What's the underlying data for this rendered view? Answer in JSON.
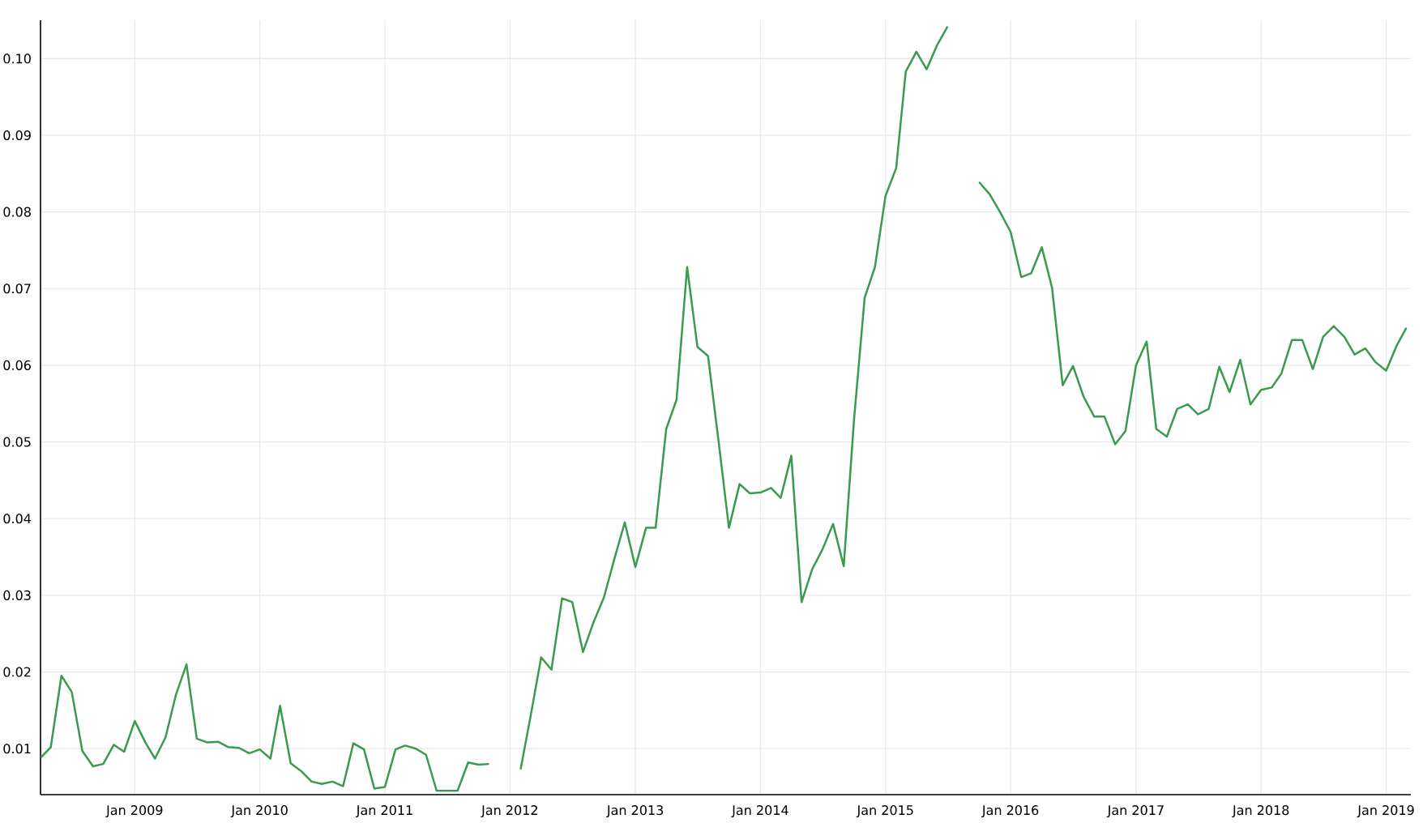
{
  "chart_data": {
    "type": "line",
    "x": [
      "2008-04",
      "2008-05",
      "2008-06",
      "2008-07",
      "2008-08",
      "2008-09",
      "2008-10",
      "2008-11",
      "2008-12",
      "2009-01",
      "2009-02",
      "2009-03",
      "2009-04",
      "2009-05",
      "2009-06",
      "2009-07",
      "2009-08",
      "2009-09",
      "2009-10",
      "2009-11",
      "2009-12",
      "2010-01",
      "2010-02",
      "2010-03",
      "2010-04",
      "2010-05",
      "2010-06",
      "2010-07",
      "2010-08",
      "2010-09",
      "2010-10",
      "2010-11",
      "2010-12",
      "2011-01",
      "2011-02",
      "2011-03",
      "2011-04",
      "2011-05",
      "2011-06",
      "2011-07",
      "2011-08",
      "2011-09",
      "2011-10",
      "2011-11",
      "2011-12",
      "2012-01",
      "2012-02",
      "2012-03",
      "2012-04",
      "2012-05",
      "2012-06",
      "2012-07",
      "2012-08",
      "2012-09",
      "2012-10",
      "2012-11",
      "2012-12",
      "2013-01",
      "2013-02",
      "2013-03",
      "2013-04",
      "2013-05",
      "2013-06",
      "2013-07",
      "2013-08",
      "2013-09",
      "2013-10",
      "2013-11",
      "2013-12",
      "2014-01",
      "2014-02",
      "2014-03",
      "2014-04",
      "2014-05",
      "2014-06",
      "2014-07",
      "2014-08",
      "2014-09",
      "2014-10",
      "2014-11",
      "2014-12",
      "2015-01",
      "2015-02",
      "2015-03",
      "2015-04",
      "2015-05",
      "2015-06",
      "2015-07",
      "2015-08",
      "2015-09",
      "2015-10",
      "2015-11",
      "2015-12",
      "2016-01",
      "2016-02",
      "2016-03",
      "2016-04",
      "2016-05",
      "2016-06",
      "2016-07",
      "2016-08",
      "2016-09",
      "2016-10",
      "2016-11",
      "2016-12",
      "2017-01",
      "2017-02",
      "2017-03",
      "2017-04",
      "2017-05",
      "2017-06",
      "2017-07",
      "2017-08",
      "2017-09",
      "2017-10",
      "2017-11",
      "2017-12",
      "2018-01",
      "2018-02",
      "2018-03",
      "2018-04",
      "2018-05",
      "2018-06",
      "2018-07",
      "2018-08",
      "2018-09",
      "2018-10",
      "2018-11",
      "2018-12",
      "2019-01",
      "2019-02",
      "2019-03"
    ],
    "series": [
      {
        "color": "#3a9a4e",
        "values": [
          0.0088,
          0.0102,
          0.0195,
          0.0174,
          0.0097,
          0.0077,
          0.008,
          0.0105,
          0.0096,
          0.0136,
          0.0108,
          0.0087,
          0.0115,
          0.017,
          0.021,
          0.0113,
          0.0108,
          0.0109,
          0.0102,
          0.0101,
          0.0094,
          0.0099,
          0.0087,
          0.0156,
          0.0081,
          0.0071,
          0.0057,
          0.0054,
          0.0057,
          0.0051,
          0.0107,
          0.0099,
          0.0048,
          0.005,
          0.0099,
          0.0104,
          0.01,
          0.0092,
          0.0045,
          0.0045,
          0.0045,
          0.0082,
          0.0079,
          0.008,
          null,
          null,
          0.0073,
          0.0142,
          0.0219,
          0.0203,
          0.0296,
          0.0291,
          0.0226,
          0.0265,
          0.0297,
          0.0348,
          0.0395,
          0.0337,
          0.0388,
          0.0388,
          0.0517,
          0.0555,
          0.0728,
          0.0624,
          0.0612,
          0.05,
          0.0388,
          0.0445,
          0.0433,
          0.0434,
          0.044,
          0.0427,
          0.0482,
          0.0291,
          0.0334,
          0.036,
          0.0393,
          0.0338,
          0.0529,
          0.0688,
          0.0728,
          0.0821,
          0.0857,
          0.0983,
          0.1009,
          0.0986,
          0.1018,
          0.1042,
          null,
          null,
          0.0839,
          0.0823,
          0.08,
          0.0774,
          0.0715,
          0.072,
          0.0754,
          0.0701,
          0.0574,
          0.0599,
          0.0559,
          0.0533,
          0.0533,
          0.0497,
          0.0514,
          0.06,
          0.0631,
          0.0517,
          0.0507,
          0.0543,
          0.0549,
          0.0536,
          0.0543,
          0.0598,
          0.0565,
          0.0607,
          0.0549,
          0.0568,
          0.0571,
          0.0589,
          0.0633,
          0.0633,
          0.0595,
          0.0637,
          0.0651,
          0.0637,
          0.0614,
          0.0622,
          0.0604,
          0.0593,
          0.0626,
          0.0649
        ]
      }
    ],
    "xlim": [
      "2008-04-01",
      "2019-03-14"
    ],
    "ylim": [
      0.004,
      0.105
    ],
    "xticks": [
      {
        "value": "2009-01",
        "label": "Jan 2009"
      },
      {
        "value": "2010-01",
        "label": "Jan 2010"
      },
      {
        "value": "2011-01",
        "label": "Jan 2011"
      },
      {
        "value": "2012-01",
        "label": "Jan 2012"
      },
      {
        "value": "2013-01",
        "label": "Jan 2013"
      },
      {
        "value": "2014-01",
        "label": "Jan 2014"
      },
      {
        "value": "2015-01",
        "label": "Jan 2015"
      },
      {
        "value": "2016-01",
        "label": "Jan 2016"
      },
      {
        "value": "2017-01",
        "label": "Jan 2017"
      },
      {
        "value": "2018-01",
        "label": "Jan 2018"
      },
      {
        "value": "2019-01",
        "label": "Jan 2019"
      }
    ],
    "yticks": [
      0.01,
      0.02,
      0.03,
      0.04,
      0.05,
      0.06,
      0.07,
      0.08,
      0.09,
      {
        "value": 0.1,
        "label": "0.10"
      }
    ],
    "grid": true,
    "marker": "none",
    "line_style": "solid"
  }
}
